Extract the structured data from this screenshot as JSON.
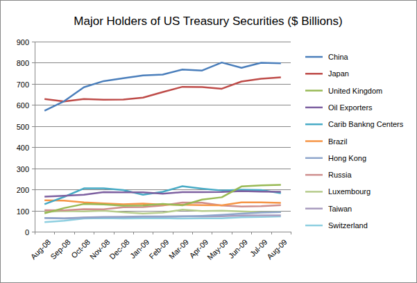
{
  "chart_data": {
    "type": "line",
    "title": "Major Holders of US Treasury Securities ($ Billions)",
    "categories": [
      "Aug-08",
      "Sep-08",
      "Oct-08",
      "Nov-08",
      "Dec-08",
      "Jan-09",
      "Feb-09",
      "Mar-09",
      "Apr-09",
      "May-09",
      "Jun-09",
      "Jul-09",
      "Aug-09"
    ],
    "series": [
      {
        "name": "China",
        "color": "#4a7ebb",
        "values": [
          573,
          618,
          684,
          713,
          727,
          740,
          744,
          768,
          763,
          801,
          776,
          800,
          797
        ]
      },
      {
        "name": "Japan",
        "color": "#be4b48",
        "values": [
          628,
          617,
          628,
          625,
          626,
          635,
          661,
          686,
          685,
          677,
          711,
          724,
          731
        ]
      },
      {
        "name": "United Kingdom",
        "color": "#98b954",
        "values": [
          87,
          112,
          131,
          129,
          123,
          124,
          131,
          125,
          152,
          163,
          214,
          219,
          222
        ]
      },
      {
        "name": "Oil Exporters",
        "color": "#7d60a0",
        "values": [
          166,
          170,
          175,
          187,
          186,
          186,
          180,
          187,
          187,
          188,
          192,
          190,
          189
        ]
      },
      {
        "name": "Carib Bankng Centers",
        "color": "#46aac5",
        "values": [
          130,
          165,
          205,
          205,
          197,
          175,
          189,
          215,
          204,
          195,
          199,
          197,
          182
        ]
      },
      {
        "name": "Brazil",
        "color": "#f69546",
        "values": [
          149,
          147,
          139,
          134,
          130,
          133,
          128,
          127,
          126,
          125,
          139,
          139,
          136
        ]
      },
      {
        "name": "Hong Kong",
        "color": "#8ea5cb",
        "values": [
          65,
          62,
          66,
          68,
          68,
          71,
          71,
          72,
          75,
          80,
          85,
          90,
          93
        ]
      },
      {
        "name": "Russia",
        "color": "#ce8e8d",
        "values": [
          102,
          101,
          107,
          106,
          116,
          117,
          124,
          138,
          137,
          124,
          119,
          121,
          126
        ]
      },
      {
        "name": "Luxembourg",
        "color": "#b6cc8c",
        "values": [
          94,
          98,
          96,
          99,
          92,
          86,
          90,
          104,
          98,
          99,
          96,
          93,
          94
        ]
      },
      {
        "name": "Taiwan",
        "color": "#a89bbe",
        "values": [
          65,
          63,
          67,
          70,
          71,
          72,
          72,
          73,
          72,
          73,
          76,
          77,
          77
        ]
      },
      {
        "name": "Switzerland",
        "color": "#8ecfe0",
        "values": [
          45,
          52,
          62,
          64,
          62,
          63,
          64,
          62,
          63,
          63,
          68,
          70,
          72
        ]
      }
    ],
    "ylim": [
      0,
      900
    ],
    "yticks": [
      0,
      100,
      200,
      300,
      400,
      500,
      600,
      700,
      800,
      900
    ],
    "grid": true,
    "legend": "right"
  }
}
